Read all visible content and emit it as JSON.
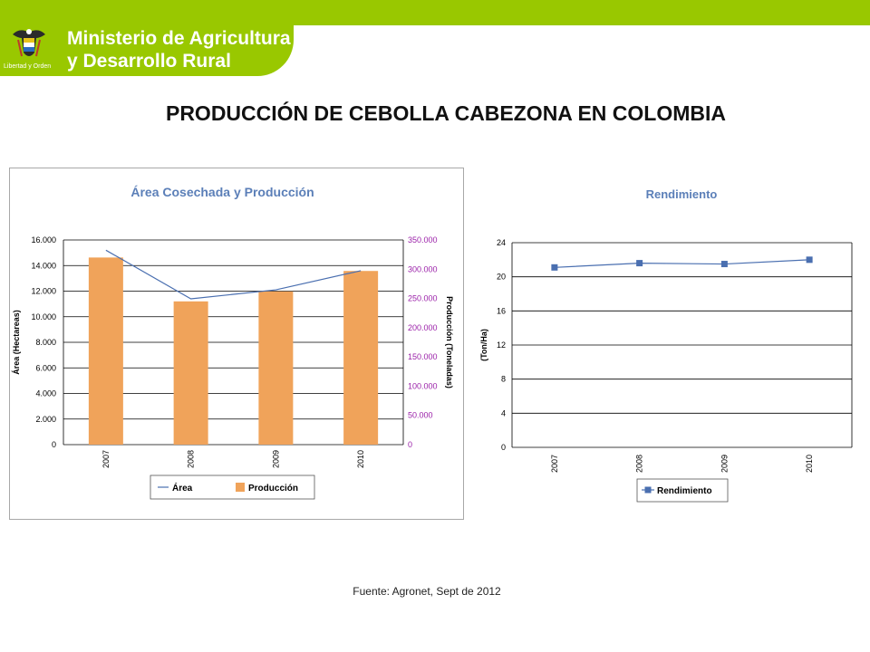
{
  "header": {
    "ministry_line1": "Ministerio de Agricultura",
    "ministry_line2": "y Desarrollo Rural",
    "crest_motto": "Libertad y Orden",
    "brand_color": "#99c800"
  },
  "page": {
    "title": "PRODUCCIÓN DE CEBOLLA CABEZONA EN COLOMBIA",
    "source": "Fuente: Agronet, Sept de 2012"
  },
  "chart_data": [
    {
      "type": "bar",
      "title": "Área Cosechada y Producción",
      "categories": [
        "2007",
        "2008",
        "2009",
        "2010"
      ],
      "series": [
        {
          "name": "Producción",
          "type": "bar",
          "axis": "right",
          "values": [
            320000,
            245000,
            262000,
            297000
          ],
          "color": "#f0a35a"
        },
        {
          "name": "Área",
          "type": "line",
          "axis": "left",
          "values": [
            15200,
            11400,
            12100,
            13600
          ],
          "color": "#4a6fb0"
        }
      ],
      "ylabel_left": "Área (Hectareas)",
      "ylabel_right": "Producción (Toneladas)",
      "ylim_left": [
        0,
        16000
      ],
      "ylim_right": [
        0,
        350000
      ],
      "yticks_left": [
        "0",
        "2.000",
        "4.000",
        "6.000",
        "8.000",
        "10.000",
        "12.000",
        "14.000",
        "16.000"
      ],
      "yticks_right": [
        "0",
        "50.000",
        "100.000",
        "150.000",
        "200.000",
        "250.000",
        "300.000",
        "350.000"
      ],
      "right_axis_color": "#9a1fa8",
      "grid": true,
      "legend": "bottom",
      "legend_items": [
        "Área",
        "Producción"
      ]
    },
    {
      "type": "line",
      "title": "Rendimiento",
      "categories": [
        "2007",
        "2008",
        "2009",
        "2010"
      ],
      "series": [
        {
          "name": "Rendimiento",
          "values": [
            21.1,
            21.6,
            21.5,
            22.0
          ],
          "color": "#4a6fb0"
        }
      ],
      "ylabel": "(Ton/Ha)",
      "ylim": [
        0,
        24
      ],
      "yticks": [
        "0",
        "4",
        "8",
        "12",
        "16",
        "20",
        "24"
      ],
      "grid": true,
      "legend": "bottom",
      "legend_items": [
        "Rendimiento"
      ]
    }
  ]
}
